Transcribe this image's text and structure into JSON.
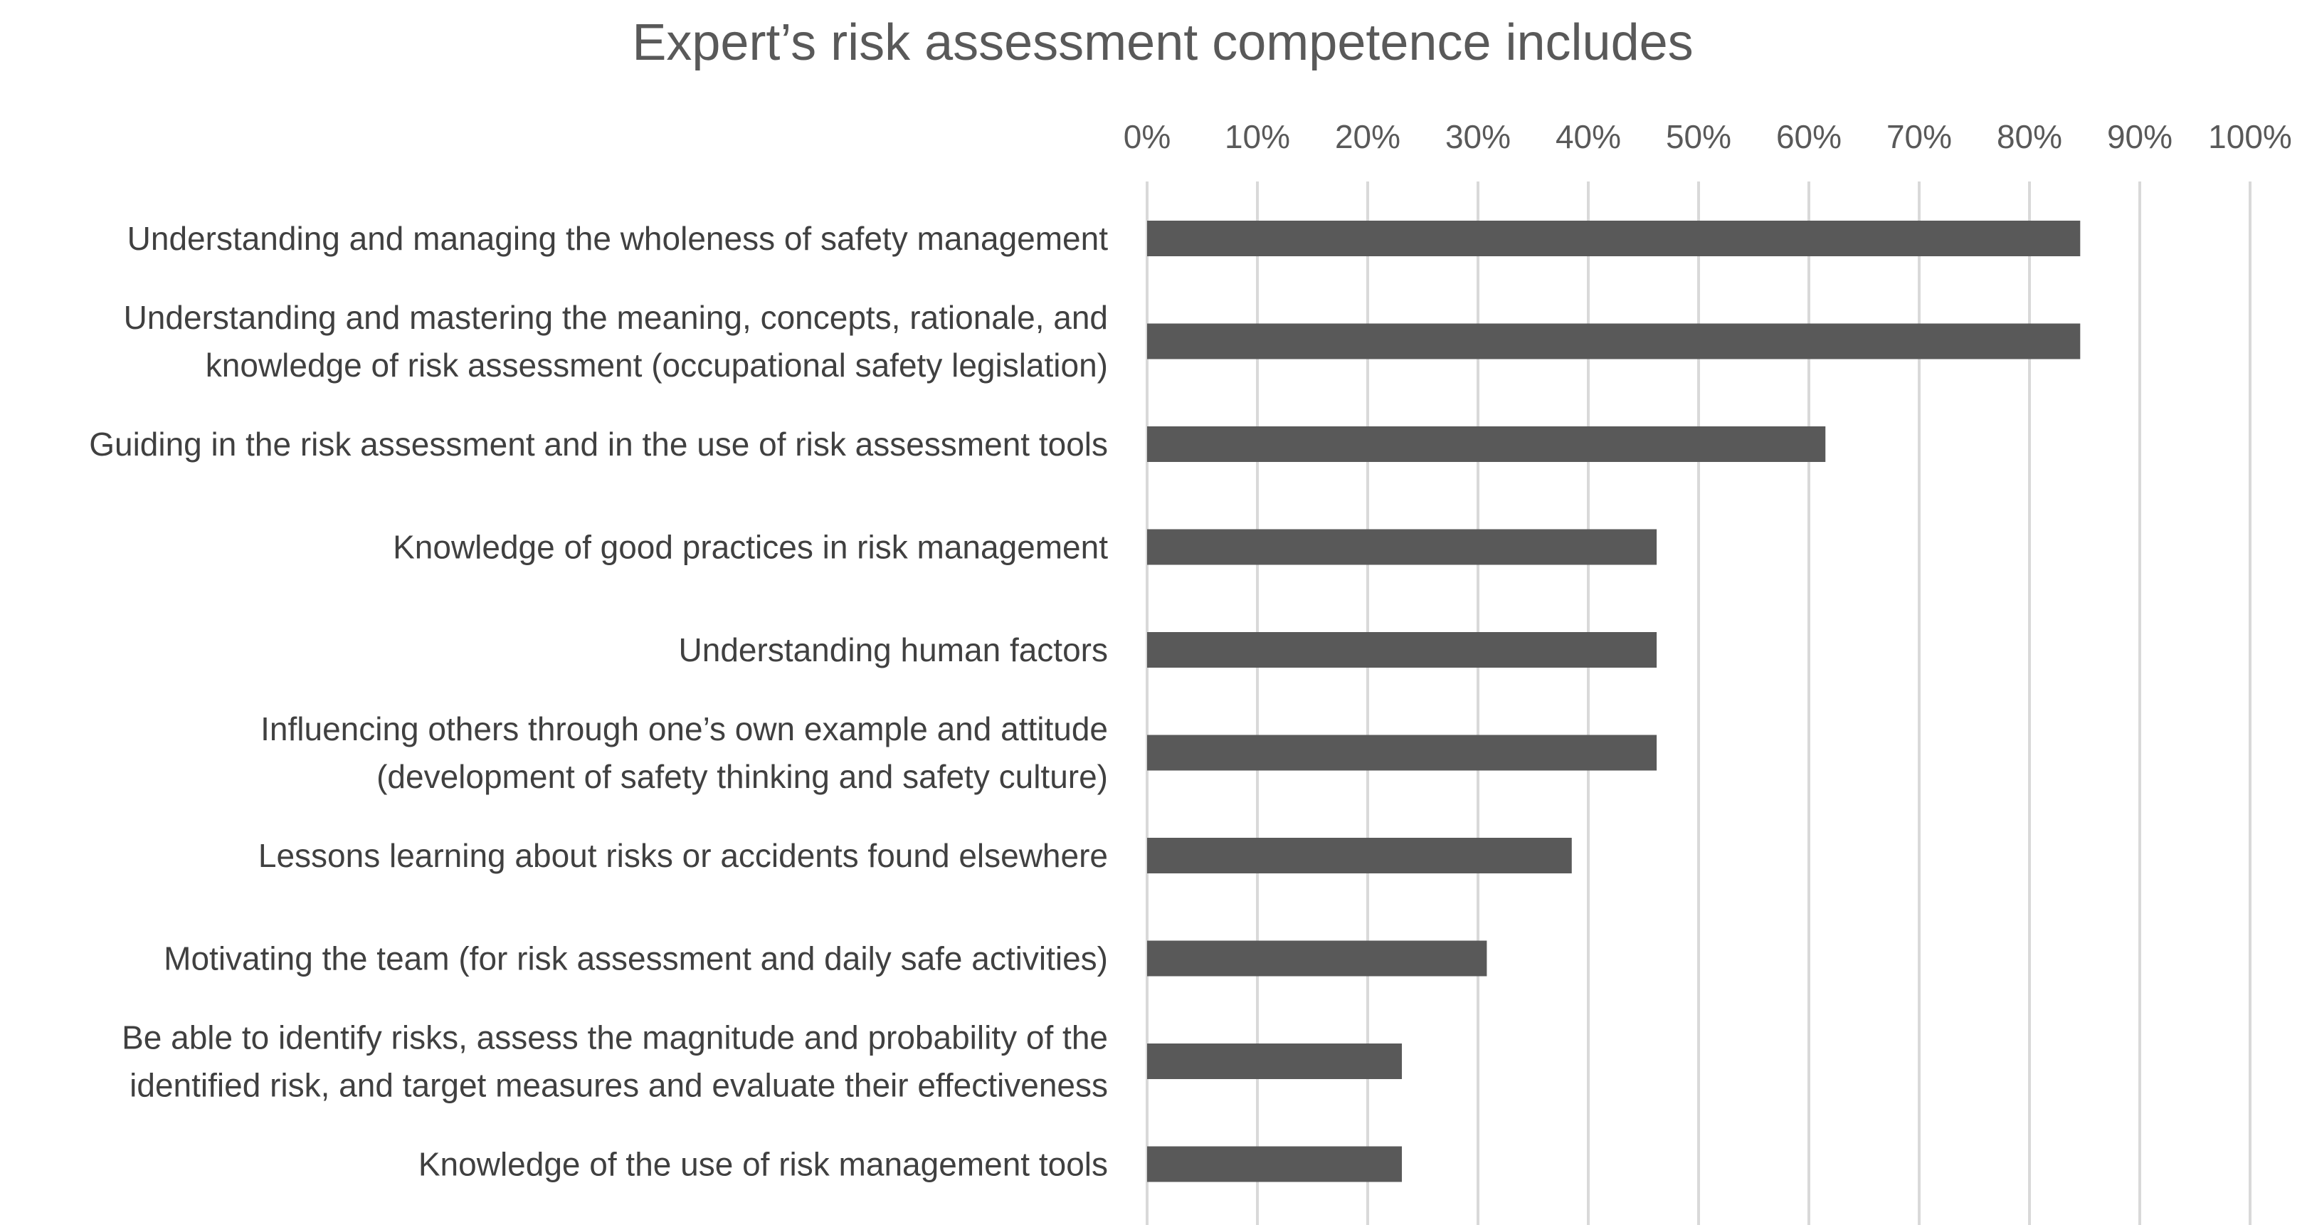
{
  "chart_data": {
    "type": "bar",
    "orientation": "horizontal",
    "title": "Expert’s risk assessment competence includes",
    "xlabel": "",
    "ylabel": "",
    "xlim": [
      0,
      100
    ],
    "x_ticks": [
      "0%",
      "10%",
      "20%",
      "30%",
      "40%",
      "50%",
      "60%",
      "70%",
      "80%",
      "90%",
      "100%"
    ],
    "grid": true,
    "legend": "none",
    "bar_color": "#595959",
    "categories": [
      [
        "Understanding and managing the wholeness of safety management"
      ],
      [
        "Understanding and mastering the meaning, concepts, rationale, and",
        "knowledge of risk assessment (occupational safety legislation)"
      ],
      [
        "Guiding in the risk assessment and in the use of risk assessment tools"
      ],
      [
        "Knowledge of good practices in risk management"
      ],
      [
        "Understanding human factors"
      ],
      [
        "Influencing others through one’s own example and attitude",
        "(development of safety thinking and safety culture)"
      ],
      [
        "Lessons learning about risks or accidents found elsewhere"
      ],
      [
        "Motivating the team (for risk assessment and daily safe activities)"
      ],
      [
        "Be able to identify risks, assess the magnitude and probability of the",
        "identified risk, and target measures and evaluate their effectiveness"
      ],
      [
        "Knowledge of the use of risk management tools"
      ]
    ],
    "values": [
      84.6,
      84.6,
      61.5,
      46.2,
      46.2,
      46.2,
      38.5,
      30.8,
      23.1,
      23.1
    ]
  }
}
